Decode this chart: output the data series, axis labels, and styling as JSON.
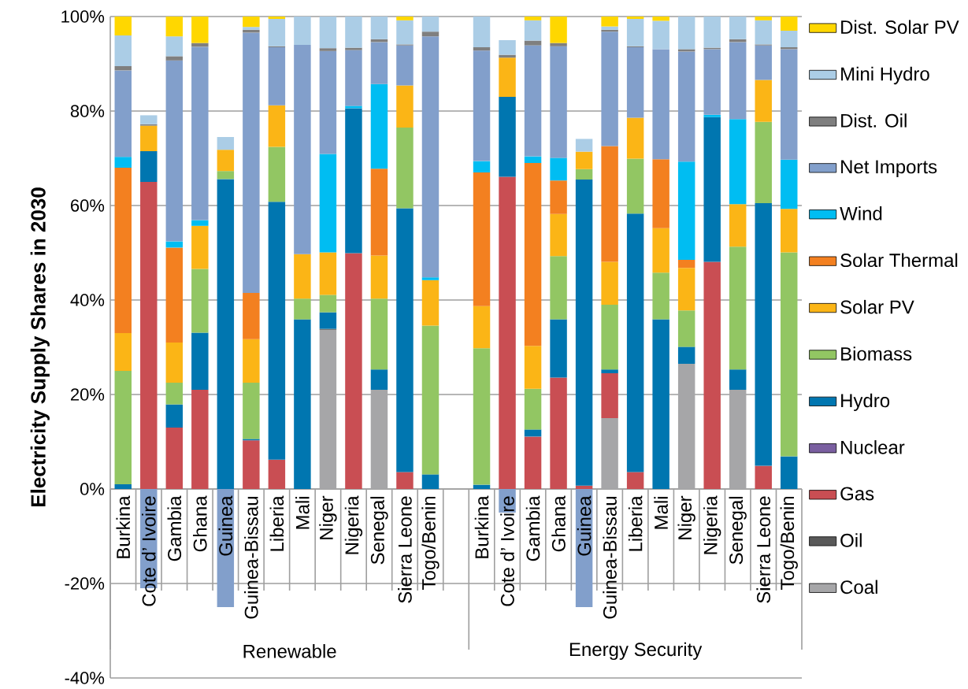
{
  "chart_data": {
    "type": "bar",
    "stacked": true,
    "ylabel": "Electricity Supply Shares in 2030",
    "categories": [
      "Burkina",
      "Cote d’ Ivoire",
      "Gambia",
      "Ghana",
      "Guinea",
      "Guinea-Bissau",
      "Liberia",
      "Mali",
      "Niger",
      "Nigeria",
      "Senegal",
      "Sierra Leone",
      "Togo/Benin",
      null,
      "Burkina",
      "Cote d’ Ivoire",
      "Gambia",
      "Ghana",
      "Guinea",
      "Guinea-Bissau",
      "Liberia",
      "Mali",
      "Niger",
      "Nigeria",
      "Senegal",
      "Sierra Leone",
      "Togo/Benin"
    ],
    "series": [
      {
        "name": "Coal",
        "color": "#a6a6a8",
        "values": [
          null,
          null,
          null,
          null,
          null,
          null,
          null,
          null,
          33.7,
          null,
          21,
          null,
          null,
          null,
          null,
          null,
          null,
          null,
          null,
          15,
          null,
          null,
          26.5,
          null,
          21,
          null,
          null
        ]
      },
      {
        "name": "Oil",
        "color": "#595959",
        "values": [
          null,
          null,
          null,
          null,
          null,
          null,
          null,
          null,
          0.2,
          null,
          null,
          null,
          null,
          null,
          null,
          null,
          null,
          null,
          null,
          null,
          null,
          null,
          null,
          null,
          null,
          null,
          null
        ]
      },
      {
        "name": "Gas",
        "color": "#c94e53",
        "values": [
          null,
          65,
          13,
          21,
          null,
          10.3,
          6.2,
          null,
          null,
          49.9,
          null,
          3.6,
          null,
          null,
          null,
          66.1,
          11.1,
          23.6,
          0.7,
          9.5,
          3.6,
          null,
          null,
          48.1,
          null,
          4.9,
          null
        ]
      },
      {
        "name": "Nuclear",
        "color": "#7a5fa0",
        "values": [
          null,
          null,
          null,
          null,
          null,
          null,
          null,
          null,
          null,
          null,
          null,
          null,
          null,
          null,
          null,
          null,
          null,
          null,
          null,
          null,
          null,
          null,
          null,
          null,
          null,
          null,
          null
        ]
      },
      {
        "name": "Hydro",
        "color": "#0076b0",
        "values": [
          1,
          6.5,
          4.9,
          12.1,
          65.6,
          0.3,
          54.6,
          35.9,
          3.5,
          30.7,
          4.3,
          55.8,
          3.1,
          null,
          0.9,
          16.9,
          1.5,
          12.3,
          64.8,
          0.8,
          54.7,
          35.9,
          3.6,
          30.6,
          4.3,
          55.6,
          6.9
        ]
      },
      {
        "name": "Biomass",
        "color": "#92c663",
        "values": [
          24,
          null,
          4.6,
          13.5,
          1.7,
          11.9,
          11.6,
          4.4,
          3.7,
          null,
          15,
          17.1,
          31.5,
          null,
          28.9,
          null,
          8.6,
          13.4,
          2.2,
          13.7,
          11.6,
          9.9,
          7.7,
          null,
          26,
          17.2,
          43.2
        ]
      },
      {
        "name": "Solar PV",
        "color": "#fbb516",
        "values": [
          8,
          5.4,
          8.5,
          9.1,
          4.5,
          9.2,
          8.8,
          9.4,
          9,
          null,
          9.1,
          8.9,
          9.6,
          null,
          8.9,
          8.3,
          9.1,
          8.9,
          3.7,
          9.1,
          8.7,
          9.4,
          9,
          null,
          9,
          8.9,
          9.2
        ]
      },
      {
        "name": "Solar Thermal",
        "color": "#f38020",
        "values": [
          35,
          null,
          20.1,
          null,
          null,
          9.8,
          null,
          null,
          null,
          null,
          18.4,
          null,
          null,
          null,
          28.3,
          null,
          38.7,
          7.1,
          null,
          24.5,
          null,
          14.6,
          1.7,
          null,
          null,
          null,
          null
        ]
      },
      {
        "name": "Wind",
        "color": "#00bdf2",
        "values": [
          2.3,
          null,
          1.3,
          1.2,
          null,
          null,
          null,
          null,
          20.8,
          0.5,
          17.9,
          null,
          0.6,
          null,
          2.4,
          null,
          1.4,
          4.8,
          null,
          null,
          null,
          null,
          20.8,
          0.5,
          18,
          null,
          10.4
        ]
      },
      {
        "name": "Net Imports",
        "color": "#829fcb",
        "values": [
          18.3,
          -21,
          38.3,
          36.7,
          -25,
          55.1,
          12.3,
          44.3,
          21.8,
          11.8,
          8.9,
          8.5,
          51,
          null,
          23.4,
          -5,
          23.5,
          23.6,
          -25,
          24.2,
          14.9,
          23.3,
          23.3,
          13.9,
          16.3,
          7.3,
          23.4
        ]
      },
      {
        "name": "Dist. Oil",
        "color": "#7f7f7f",
        "values": [
          0.9,
          0.3,
          0.9,
          0.8,
          null,
          0.6,
          0.2,
          null,
          0.6,
          0.5,
          0.6,
          0.2,
          1,
          null,
          0.7,
          0.6,
          1,
          0.7,
          null,
          0.4,
          0.2,
          null,
          0.5,
          0.3,
          0.6,
          0.2,
          0.4
        ]
      },
      {
        "name": "Mini Hydro",
        "color": "#abcde6",
        "values": [
          6.5,
          1.9,
          4.2,
          null,
          2.7,
          0.6,
          5.8,
          6,
          6.7,
          6.6,
          4.8,
          5.1,
          3.2,
          null,
          6.5,
          3.1,
          4.3,
          null,
          2.7,
          0.7,
          5.8,
          6,
          6.9,
          6.6,
          4.8,
          5.1,
          3.5
        ]
      },
      {
        "name": "Dist. Solar PV",
        "color": "#ffd700",
        "values": [
          4,
          null,
          4.2,
          5.6,
          null,
          2.2,
          0.5,
          null,
          null,
          null,
          null,
          0.8,
          null,
          null,
          null,
          null,
          0.8,
          5.6,
          null,
          2.1,
          0.5,
          0.9,
          null,
          null,
          null,
          0.8,
          3
        ]
      }
    ],
    "ylim": [
      -40,
      100
    ],
    "yticks": [
      {
        "value": -40,
        "label": "-40%"
      },
      {
        "value": -20,
        "label": "-20%"
      },
      {
        "value": 0,
        "label": "0%"
      },
      {
        "value": 20,
        "label": "20%"
      },
      {
        "value": 40,
        "label": "40%"
      },
      {
        "value": 60,
        "label": "60%"
      },
      {
        "value": 80,
        "label": "80%"
      },
      {
        "value": 100,
        "label": "100%"
      }
    ],
    "grid": "y",
    "legend": "right",
    "annotations": [
      "Renewable",
      "Energy Security"
    ]
  }
}
